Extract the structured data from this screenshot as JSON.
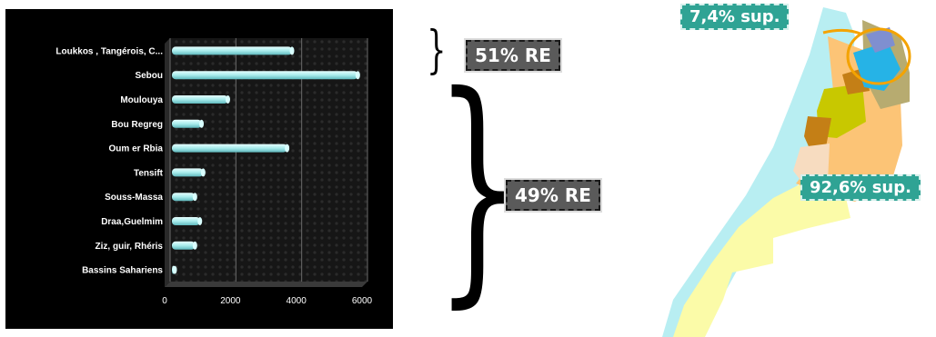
{
  "chart_data": {
    "type": "bar",
    "orientation": "horizontal",
    "categories": [
      "Loukkos , Tangérois, C...",
      "Sebou",
      "Moulouya",
      "Bou Regreg",
      "Oum er Rbia",
      "Tensift",
      "Souss-Massa",
      "Draa,Guelmim",
      "Ziz, guir, Rhéris",
      "Bassins Sahariens"
    ],
    "values": [
      3650,
      5650,
      1700,
      900,
      3500,
      950,
      700,
      850,
      700,
      50
    ],
    "xlim": [
      0,
      6000
    ],
    "xticks": [
      "0",
      "2000",
      "4000",
      "6000"
    ],
    "grid": true,
    "legend": "none",
    "bar_color": "#a9ecec",
    "background": "#000000"
  },
  "annotations": {
    "top_group": "51% RE",
    "bottom_group": "49% RE"
  },
  "map": {
    "north_share": "7,4% sup.",
    "rest_share": "92,6% sup."
  },
  "colors": {
    "badge_dark": "#5a5a5a",
    "badge_teal": "#2fa394",
    "sea": "#b8eef2",
    "sahara": "#fbfba8",
    "highlight_ring": "#f4a300"
  }
}
